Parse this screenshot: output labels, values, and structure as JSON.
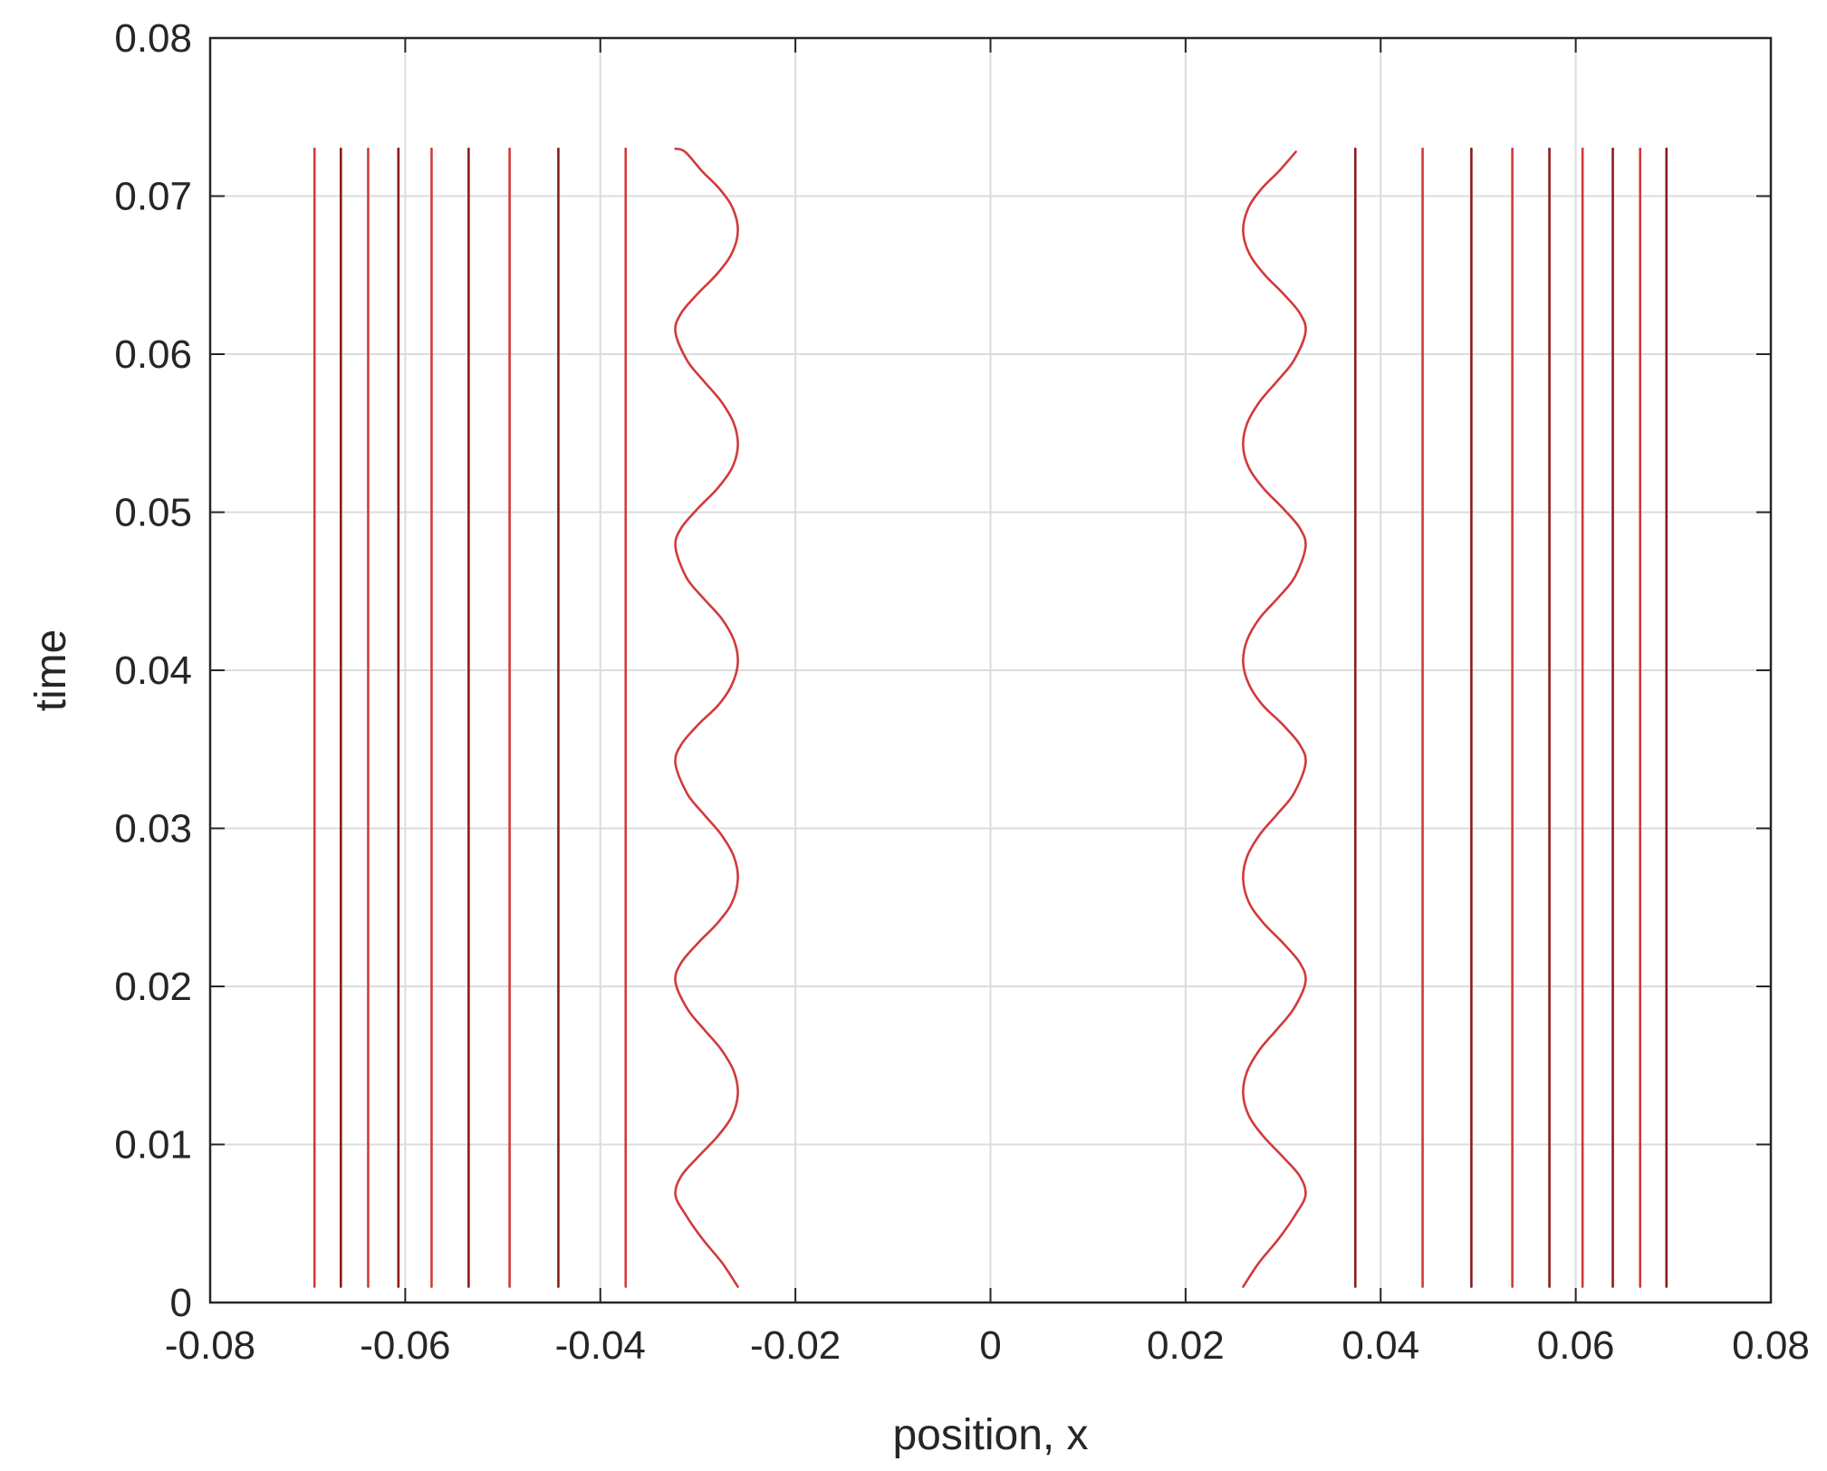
{
  "chart_data": {
    "type": "line",
    "title": "",
    "xlabel": "position, x",
    "ylabel": "time",
    "xlim": [
      -0.08,
      0.08
    ],
    "ylim": [
      0,
      0.08
    ],
    "xticks": [
      -0.08,
      -0.06,
      -0.04,
      -0.02,
      0,
      0.02,
      0.04,
      0.06,
      0.08
    ],
    "xtick_labels": [
      "-0.08",
      "-0.06",
      "-0.04",
      "-0.02",
      "0",
      "0.02",
      "0.04",
      "0.06",
      "0.08"
    ],
    "yticks": [
      0,
      0.01,
      0.02,
      0.03,
      0.04,
      0.05,
      0.06,
      0.07,
      0.08
    ],
    "ytick_labels": [
      "0",
      "0.01",
      "0.02",
      "0.03",
      "0.04",
      "0.05",
      "0.06",
      "0.07",
      "0.08"
    ],
    "grid": true,
    "line_colors": [
      "#d23a3a",
      "#8c1c1c"
    ],
    "t_range": [
      0.001,
      0.073
    ],
    "vertical_lines_x": [
      -0.0693,
      -0.0666,
      -0.0638,
      -0.0607,
      -0.0573,
      -0.0535,
      -0.0493,
      -0.0443,
      -0.0374,
      0.0374,
      0.0443,
      0.0493,
      0.0535,
      0.0573,
      0.0607,
      0.0638,
      0.0666,
      0.0693
    ],
    "oscillating_curves": [
      {
        "x": [
          -0.0259,
          -0.0275,
          -0.0295,
          -0.0312,
          -0.0323,
          -0.0317,
          -0.03,
          -0.028,
          -0.0265,
          -0.0259,
          -0.0263,
          -0.0276,
          -0.0294,
          -0.0311,
          -0.0323,
          -0.0317,
          -0.0299,
          -0.028,
          -0.0265,
          -0.0259,
          -0.0263,
          -0.0276,
          -0.0294,
          -0.0311,
          -0.0323,
          -0.0317,
          -0.0299,
          -0.0279,
          -0.0265,
          -0.0259,
          -0.0263,
          -0.0276,
          -0.0295,
          -0.0312,
          -0.0323,
          -0.0317,
          -0.0299,
          -0.028,
          -0.0265,
          -0.0259,
          -0.0263,
          -0.0276,
          -0.0294,
          -0.0311,
          -0.0323,
          -0.0317,
          -0.0299,
          -0.028,
          -0.0265,
          -0.0259,
          -0.0264,
          -0.0277,
          -0.0296,
          -0.0313,
          -0.0323,
          -0.0316,
          -0.0297,
          -0.0278,
          -0.0264,
          -0.0259,
          -0.0265,
          -0.028,
          -0.0296,
          -0.0309,
          -0.0311
        ],
        "t": [
          0.001,
          0.0025,
          0.004,
          0.0055,
          0.0068,
          0.008,
          0.0092,
          0.0105,
          0.0118,
          0.0132,
          0.0146,
          0.016,
          0.0173,
          0.0186,
          0.0203,
          0.0215,
          0.0228,
          0.024,
          0.0253,
          0.0268,
          0.0282,
          0.0296,
          0.0309,
          0.0322,
          0.0341,
          0.0353,
          0.0366,
          0.0378,
          0.0391,
          0.0405,
          0.0419,
          0.0433,
          0.0446,
          0.0459,
          0.0478,
          0.049,
          0.0503,
          0.0515,
          0.0528,
          0.0542,
          0.0556,
          0.057,
          0.0583,
          0.0596,
          0.0614,
          0.0626,
          0.0639,
          0.0651,
          0.0664,
          0.0678,
          0.0692,
          0.0704,
          0.0716,
          0.0728,
          0.073,
          0.073,
          0.073,
          0.073,
          0.073,
          0.073,
          0.073,
          0.073,
          0.073,
          0.073,
          0.073
        ]
      },
      {
        "x": [
          0.0259,
          0.0275,
          0.0295,
          0.0312,
          0.0323,
          0.0317,
          0.03,
          0.028,
          0.0265,
          0.0259,
          0.0263,
          0.0276,
          0.0294,
          0.0311,
          0.0323,
          0.0317,
          0.0299,
          0.028,
          0.0265,
          0.0259,
          0.0263,
          0.0276,
          0.0294,
          0.0311,
          0.0323,
          0.0317,
          0.0299,
          0.0279,
          0.0265,
          0.0259,
          0.0263,
          0.0276,
          0.0295,
          0.0312,
          0.0323,
          0.0317,
          0.0299,
          0.028,
          0.0265,
          0.0259,
          0.0263,
          0.0276,
          0.0294,
          0.0311,
          0.0323,
          0.0317,
          0.0299,
          0.028,
          0.0265,
          0.0259,
          0.0264,
          0.0277,
          0.0296,
          0.0313
        ],
        "t": [
          0.001,
          0.0025,
          0.004,
          0.0055,
          0.0068,
          0.008,
          0.0092,
          0.0105,
          0.0118,
          0.0132,
          0.0146,
          0.016,
          0.0173,
          0.0186,
          0.0203,
          0.0215,
          0.0228,
          0.024,
          0.0253,
          0.0268,
          0.0282,
          0.0296,
          0.0309,
          0.0322,
          0.0341,
          0.0353,
          0.0366,
          0.0378,
          0.0391,
          0.0405,
          0.0419,
          0.0433,
          0.0446,
          0.0459,
          0.0478,
          0.049,
          0.0503,
          0.0515,
          0.0528,
          0.0542,
          0.0556,
          0.057,
          0.0583,
          0.0596,
          0.0614,
          0.0626,
          0.0639,
          0.0651,
          0.0664,
          0.0678,
          0.0692,
          0.0704,
          0.0716,
          0.0728
        ]
      }
    ]
  }
}
